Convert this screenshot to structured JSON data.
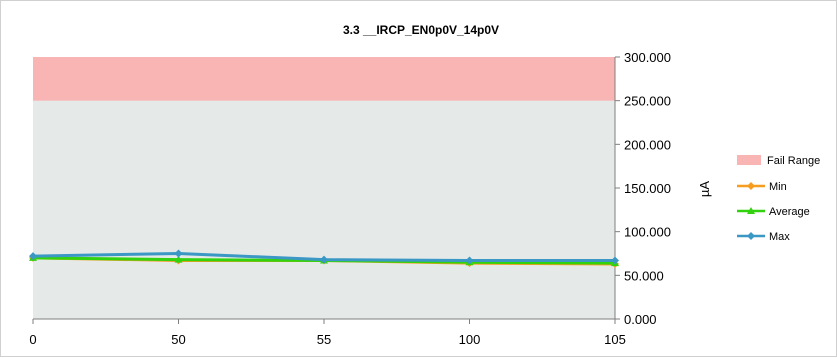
{
  "chart_data": {
    "type": "line",
    "title": "3.3 __IRCP_EN0p0V_14p0V",
    "xlabel": "",
    "ylabel": "µA",
    "categories": [
      "0",
      "50",
      "55",
      "100",
      "105"
    ],
    "ylim": [
      0,
      300
    ],
    "y_ticks": [
      "0.000",
      "50.000",
      "100.000",
      "150.000",
      "200.000",
      "250.000",
      "300.000"
    ],
    "y_axis_side": "right",
    "fail_range": {
      "name": "Fail Range",
      "from": 250,
      "to": 300,
      "color": "#f9b4b4"
    },
    "pass_band_color": "#e5eae9",
    "legend_position": "right",
    "series": [
      {
        "name": "Min",
        "color": "#f59d1e",
        "marker": "diamond",
        "values": [
          70,
          67,
          67,
          64,
          63
        ]
      },
      {
        "name": "Average",
        "color": "#32d20f",
        "marker": "triangle",
        "values": [
          70,
          68,
          67,
          65,
          64
        ]
      },
      {
        "name": "Max",
        "color": "#3b98c5",
        "marker": "diamond",
        "values": [
          72,
          75,
          68,
          67,
          67
        ]
      }
    ]
  }
}
